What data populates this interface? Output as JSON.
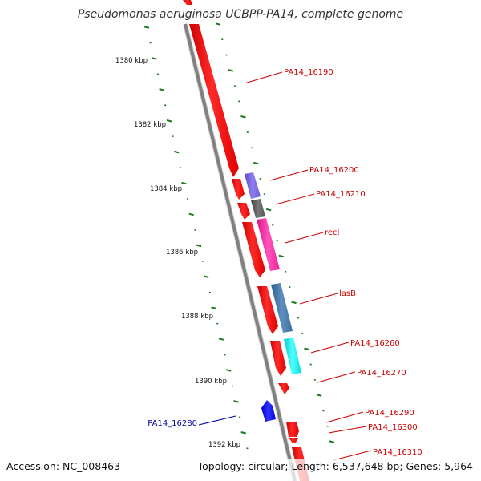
{
  "title": "Pseudomonas aeruginosa UCBPP-PA14, complete genome",
  "footer": {
    "accession": "Accession: NC_008463",
    "summary": "Topology: circular; Length: 6,537,648 bp; Genes: 5,964"
  },
  "scale_labels": [
    "1380 kbp",
    "1382 kbp",
    "1384 kbp",
    "1386 kbp",
    "1388 kbp",
    "1390 kbp",
    "1392 kbp"
  ],
  "gene_labels": [
    {
      "text": "PA14_16190",
      "color": "#cc0000"
    },
    {
      "text": "PA14_16200",
      "color": "#cc0000"
    },
    {
      "text": "PA14_16210",
      "color": "#cc0000"
    },
    {
      "text": "recJ",
      "color": "#cc0000"
    },
    {
      "text": "lasB",
      "color": "#cc0000"
    },
    {
      "text": "PA14_16260",
      "color": "#cc0000"
    },
    {
      "text": "PA14_16270",
      "color": "#cc0000"
    },
    {
      "text": "PA14_16290",
      "color": "#cc0000"
    },
    {
      "text": "PA14_16300",
      "color": "#cc0000"
    },
    {
      "text": "PA14_16310",
      "color": "#cc0000"
    },
    {
      "text": "PA14_16280",
      "color": "#0000aa"
    }
  ],
  "colors": {
    "backbone": "#808080",
    "scale_ticks": "#1a7a1a",
    "cds": "#ff0000",
    "gene_purple": "#7b68ee",
    "gene_gray": "#666666",
    "gene_magenta": "#ff33aa",
    "gene_steelblue": "#4a7fb5",
    "gene_cyan": "#00eeee",
    "gene_blue": "#0000ff"
  }
}
